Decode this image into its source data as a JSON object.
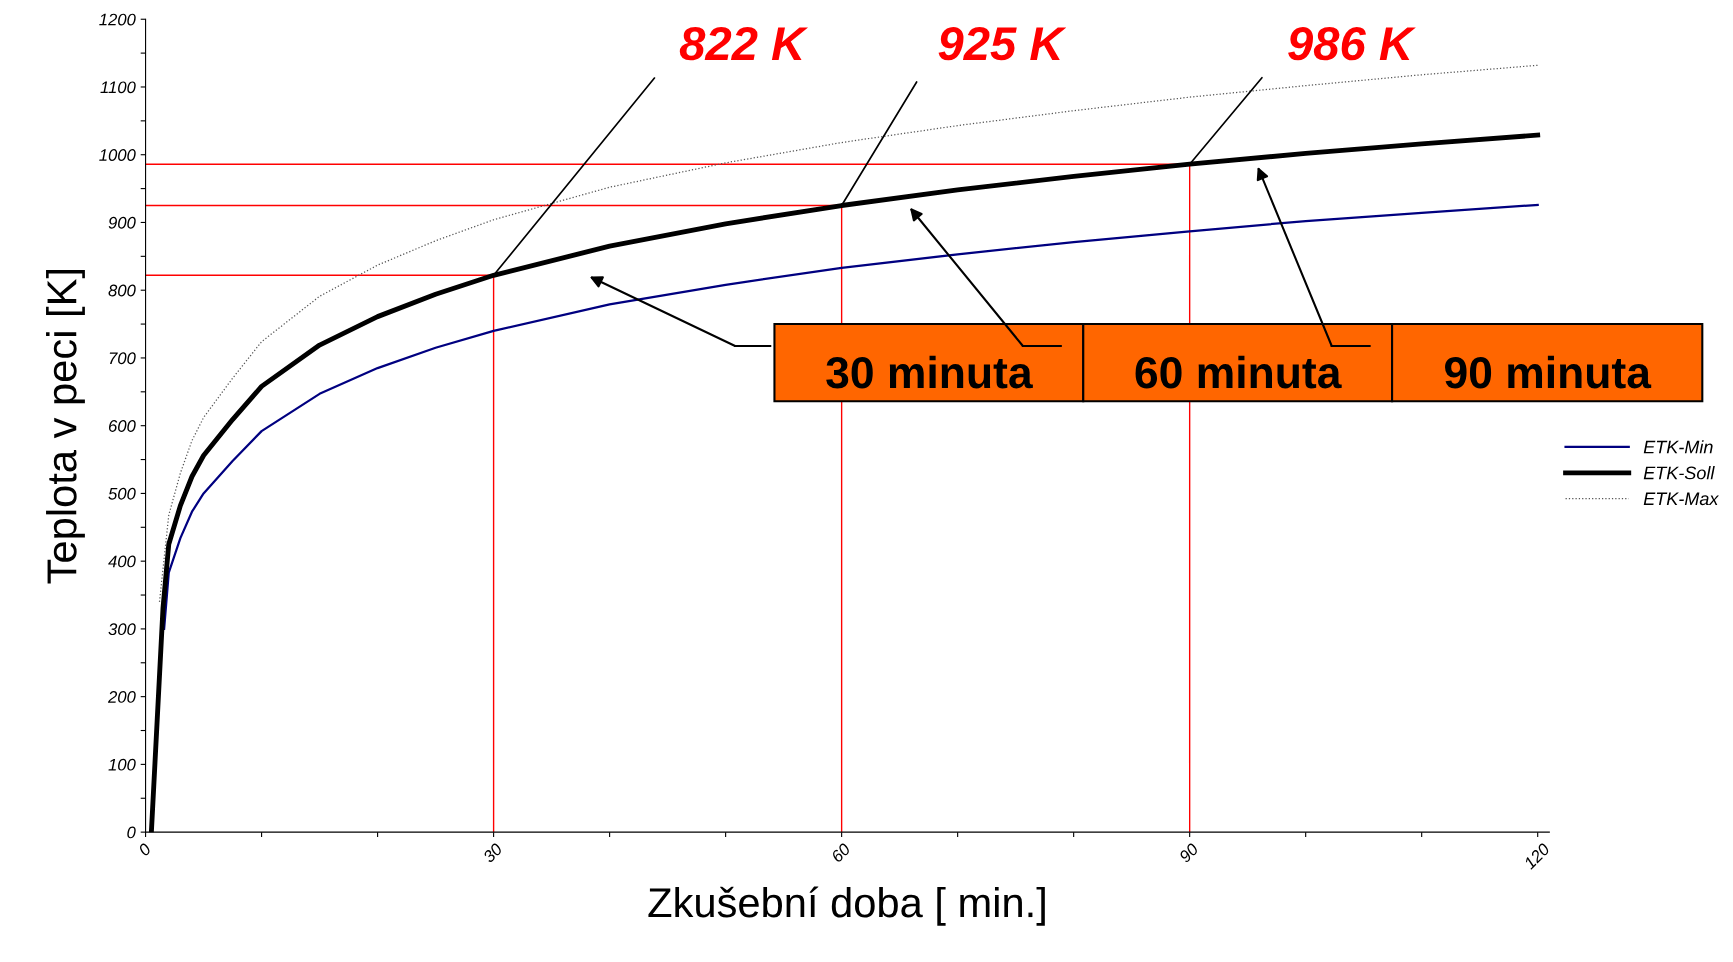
{
  "chart_data": {
    "type": "line",
    "xlabel": "Zkušební doba [ min.]",
    "ylabel": "Teplota v peci [K]",
    "xlim": [
      0,
      121
    ],
    "ylim": [
      0,
      1200
    ],
    "xticks": [
      0,
      {
        "value": 10,
        "label": null
      },
      {
        "value": 20,
        "label": null
      },
      30,
      {
        "value": 40,
        "label": null
      },
      {
        "value": 50,
        "label": null
      },
      60,
      {
        "value": 70,
        "label": null
      },
      {
        "value": 80,
        "label": null
      },
      90,
      {
        "value": 100,
        "label": null
      },
      {
        "value": 110,
        "label": null
      },
      120
    ],
    "yticks": [
      0,
      {
        "value": 50,
        "label": null
      },
      100,
      {
        "value": 150,
        "label": null
      },
      200,
      {
        "value": 250,
        "label": null
      },
      300,
      {
        "value": 350,
        "label": null
      },
      400,
      {
        "value": 450,
        "label": null
      },
      500,
      {
        "value": 550,
        "label": null
      },
      600,
      {
        "value": 650,
        "label": null
      },
      700,
      {
        "value": 750,
        "label": null
      },
      800,
      {
        "value": 850,
        "label": null
      },
      900,
      {
        "value": 950,
        "label": null
      },
      1000,
      {
        "value": 1050,
        "label": null
      },
      1100,
      {
        "value": 1150,
        "label": null
      },
      1200
    ],
    "grid": false,
    "legend": "right",
    "marker": "none",
    "series": [
      {
        "name": "ETK-Min",
        "color": "#000080",
        "line_style": "solid",
        "x": [
          1.6,
          2,
          3,
          4,
          5,
          7.5,
          10,
          15,
          20,
          25,
          30,
          40,
          50,
          60,
          70,
          80,
          90,
          100,
          110,
          120
        ],
        "values": [
          300,
          383,
          434,
          473,
          500,
          548,
          592,
          647,
          685,
          715,
          740,
          779,
          808,
          833,
          853,
          871,
          887,
          902,
          914,
          926
        ]
      },
      {
        "name": "ETK-Soll",
        "color": "#000000",
        "line_style": "solid",
        "x": [
          0.5,
          1.5,
          2,
          3,
          4,
          5,
          7.5,
          10,
          15,
          20,
          25,
          30,
          40,
          50,
          60,
          70,
          80,
          90,
          100,
          110,
          120
        ],
        "values": [
          0,
          330,
          425,
          482,
          525,
          556,
          609,
          658,
          719,
          761,
          794,
          822,
          865,
          898,
          925,
          948,
          968,
          986,
          1002,
          1016,
          1029
        ]
      },
      {
        "name": "ETK-Max",
        "color": "#555555",
        "line_style": "dotted",
        "x": [
          1.2,
          2,
          3,
          4,
          5,
          7.5,
          10,
          15,
          20,
          25,
          30,
          40,
          50,
          60,
          70,
          80,
          90,
          100,
          110,
          120
        ],
        "values": [
          340,
          468,
          530,
          578,
          612,
          670,
          724,
          791,
          837,
          873,
          904,
          952,
          988,
          1018,
          1043,
          1065,
          1085,
          1102,
          1118,
          1132
        ]
      },
      {
        "color": "#ff0000",
        "line_style": "solid",
        "x": [
          0,
          30,
          30
        ],
        "values": [
          822,
          822,
          0
        ]
      },
      {
        "color": "#ff0000",
        "line_style": "solid",
        "x": [
          0,
          60,
          60
        ],
        "values": [
          925,
          925,
          0
        ]
      },
      {
        "color": "#ff0000",
        "line_style": "solid",
        "x": [
          0,
          90,
          90
        ],
        "values": [
          986,
          986,
          0
        ]
      }
    ],
    "annotations": [
      {
        "text": "822 K",
        "x": 30,
        "y": 822
      },
      {
        "text": "925 K",
        "x": 60,
        "y": 925
      },
      {
        "text": "986 K",
        "x": 90,
        "y": 986
      },
      "30 minuta",
      "60 minuta",
      "90 minuta"
    ]
  }
}
